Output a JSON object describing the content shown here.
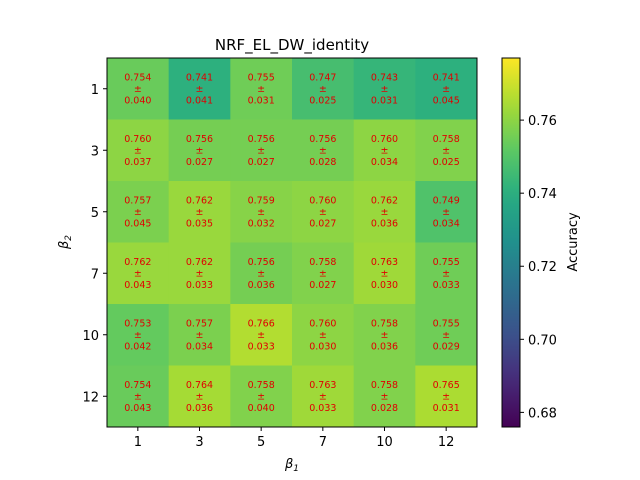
{
  "chart_data": {
    "type": "heatmap",
    "title": "NRF_EL_DW_identity",
    "xlabel_base": "β",
    "xlabel_sub": "1",
    "ylabel_base": "β",
    "ylabel_sub": "2",
    "x_categories": [
      "1",
      "3",
      "5",
      "7",
      "10",
      "12"
    ],
    "y_categories": [
      "1",
      "3",
      "5",
      "7",
      "10",
      "12"
    ],
    "mean": [
      [
        0.754,
        0.741,
        0.755,
        0.747,
        0.743,
        0.741
      ],
      [
        0.76,
        0.756,
        0.756,
        0.756,
        0.76,
        0.758
      ],
      [
        0.757,
        0.762,
        0.759,
        0.76,
        0.762,
        0.749
      ],
      [
        0.762,
        0.762,
        0.756,
        0.758,
        0.763,
        0.755
      ],
      [
        0.753,
        0.757,
        0.766,
        0.76,
        0.758,
        0.755
      ],
      [
        0.754,
        0.764,
        0.758,
        0.763,
        0.758,
        0.765
      ]
    ],
    "std": [
      [
        "0.040",
        "0.041",
        "0.031",
        "0.025",
        "0.031",
        "0.045"
      ],
      [
        "0.037",
        "0.027",
        "0.027",
        "0.028",
        "0.034",
        "0.025"
      ],
      [
        "0.045",
        "0.035",
        "0.032",
        "0.027",
        "0.036",
        "0.034"
      ],
      [
        "0.043",
        "0.033",
        "0.036",
        "0.027",
        "0.030",
        "0.033"
      ],
      [
        "0.042",
        "0.034",
        "0.033",
        "0.030",
        "0.036",
        "0.029"
      ],
      [
        "0.043",
        "0.036",
        "0.040",
        "0.033",
        "0.028",
        "0.031"
      ]
    ],
    "mean_labels": [
      [
        "0.754",
        "0.741",
        "0.755",
        "0.747",
        "0.743",
        "0.741"
      ],
      [
        "0.760",
        "0.756",
        "0.756",
        "0.756",
        "0.760",
        "0.758"
      ],
      [
        "0.757",
        "0.762",
        "0.759",
        "0.760",
        "0.762",
        "0.749"
      ],
      [
        "0.762",
        "0.762",
        "0.756",
        "0.758",
        "0.763",
        "0.755"
      ],
      [
        "0.753",
        "0.757",
        "0.766",
        "0.760",
        "0.758",
        "0.755"
      ],
      [
        "0.754",
        "0.764",
        "0.758",
        "0.763",
        "0.758",
        "0.765"
      ]
    ],
    "pm_symbol": "±",
    "annotation_color": "#e00000",
    "colormap": "viridis",
    "vmin": 0.676,
    "vmax": 0.777,
    "colorbar": {
      "label": "Accuracy",
      "ticks": [
        0.68,
        0.7,
        0.72,
        0.74,
        0.76
      ],
      "tick_labels": [
        "0.68",
        "0.70",
        "0.72",
        "0.74",
        "0.76"
      ]
    },
    "grid": false
  }
}
